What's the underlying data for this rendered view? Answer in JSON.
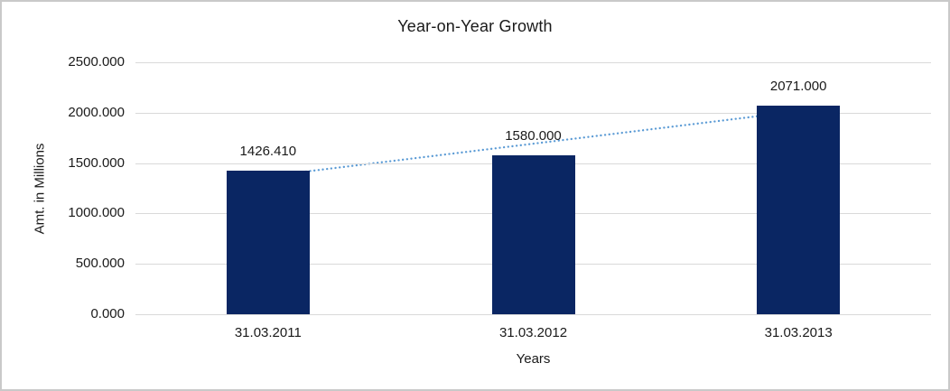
{
  "window": {
    "background": "#ffffff",
    "frame_border_color": "#c9c9c9"
  },
  "chart_data": {
    "type": "bar",
    "title": "Year-on-Year Growth",
    "xlabel": "Years",
    "ylabel": "Amt. in Millions",
    "categories": [
      "31.03.2011",
      "31.03.2012",
      "31.03.2013"
    ],
    "values": [
      1426.41,
      1580,
      2071
    ],
    "data_labels": [
      "1426.410",
      "1580.000",
      "2071.000"
    ],
    "ylim": [
      0,
      2500
    ],
    "yticks": [
      0,
      500,
      1000,
      1500,
      2000,
      2500
    ],
    "ytick_labels": [
      "0.000",
      "500.000",
      "1000.000",
      "1500.000",
      "2000.000",
      "2500.000"
    ],
    "grid": true,
    "legend": "none",
    "trendline": {
      "type": "linear",
      "style": "dotted",
      "start_value": 1370.0,
      "end_value": 2014.9
    },
    "colors": {
      "bar": "#0a2663",
      "trendline": "#5b9bd5",
      "gridline": "#d9d9d9",
      "text": "#1a1a1a"
    }
  }
}
